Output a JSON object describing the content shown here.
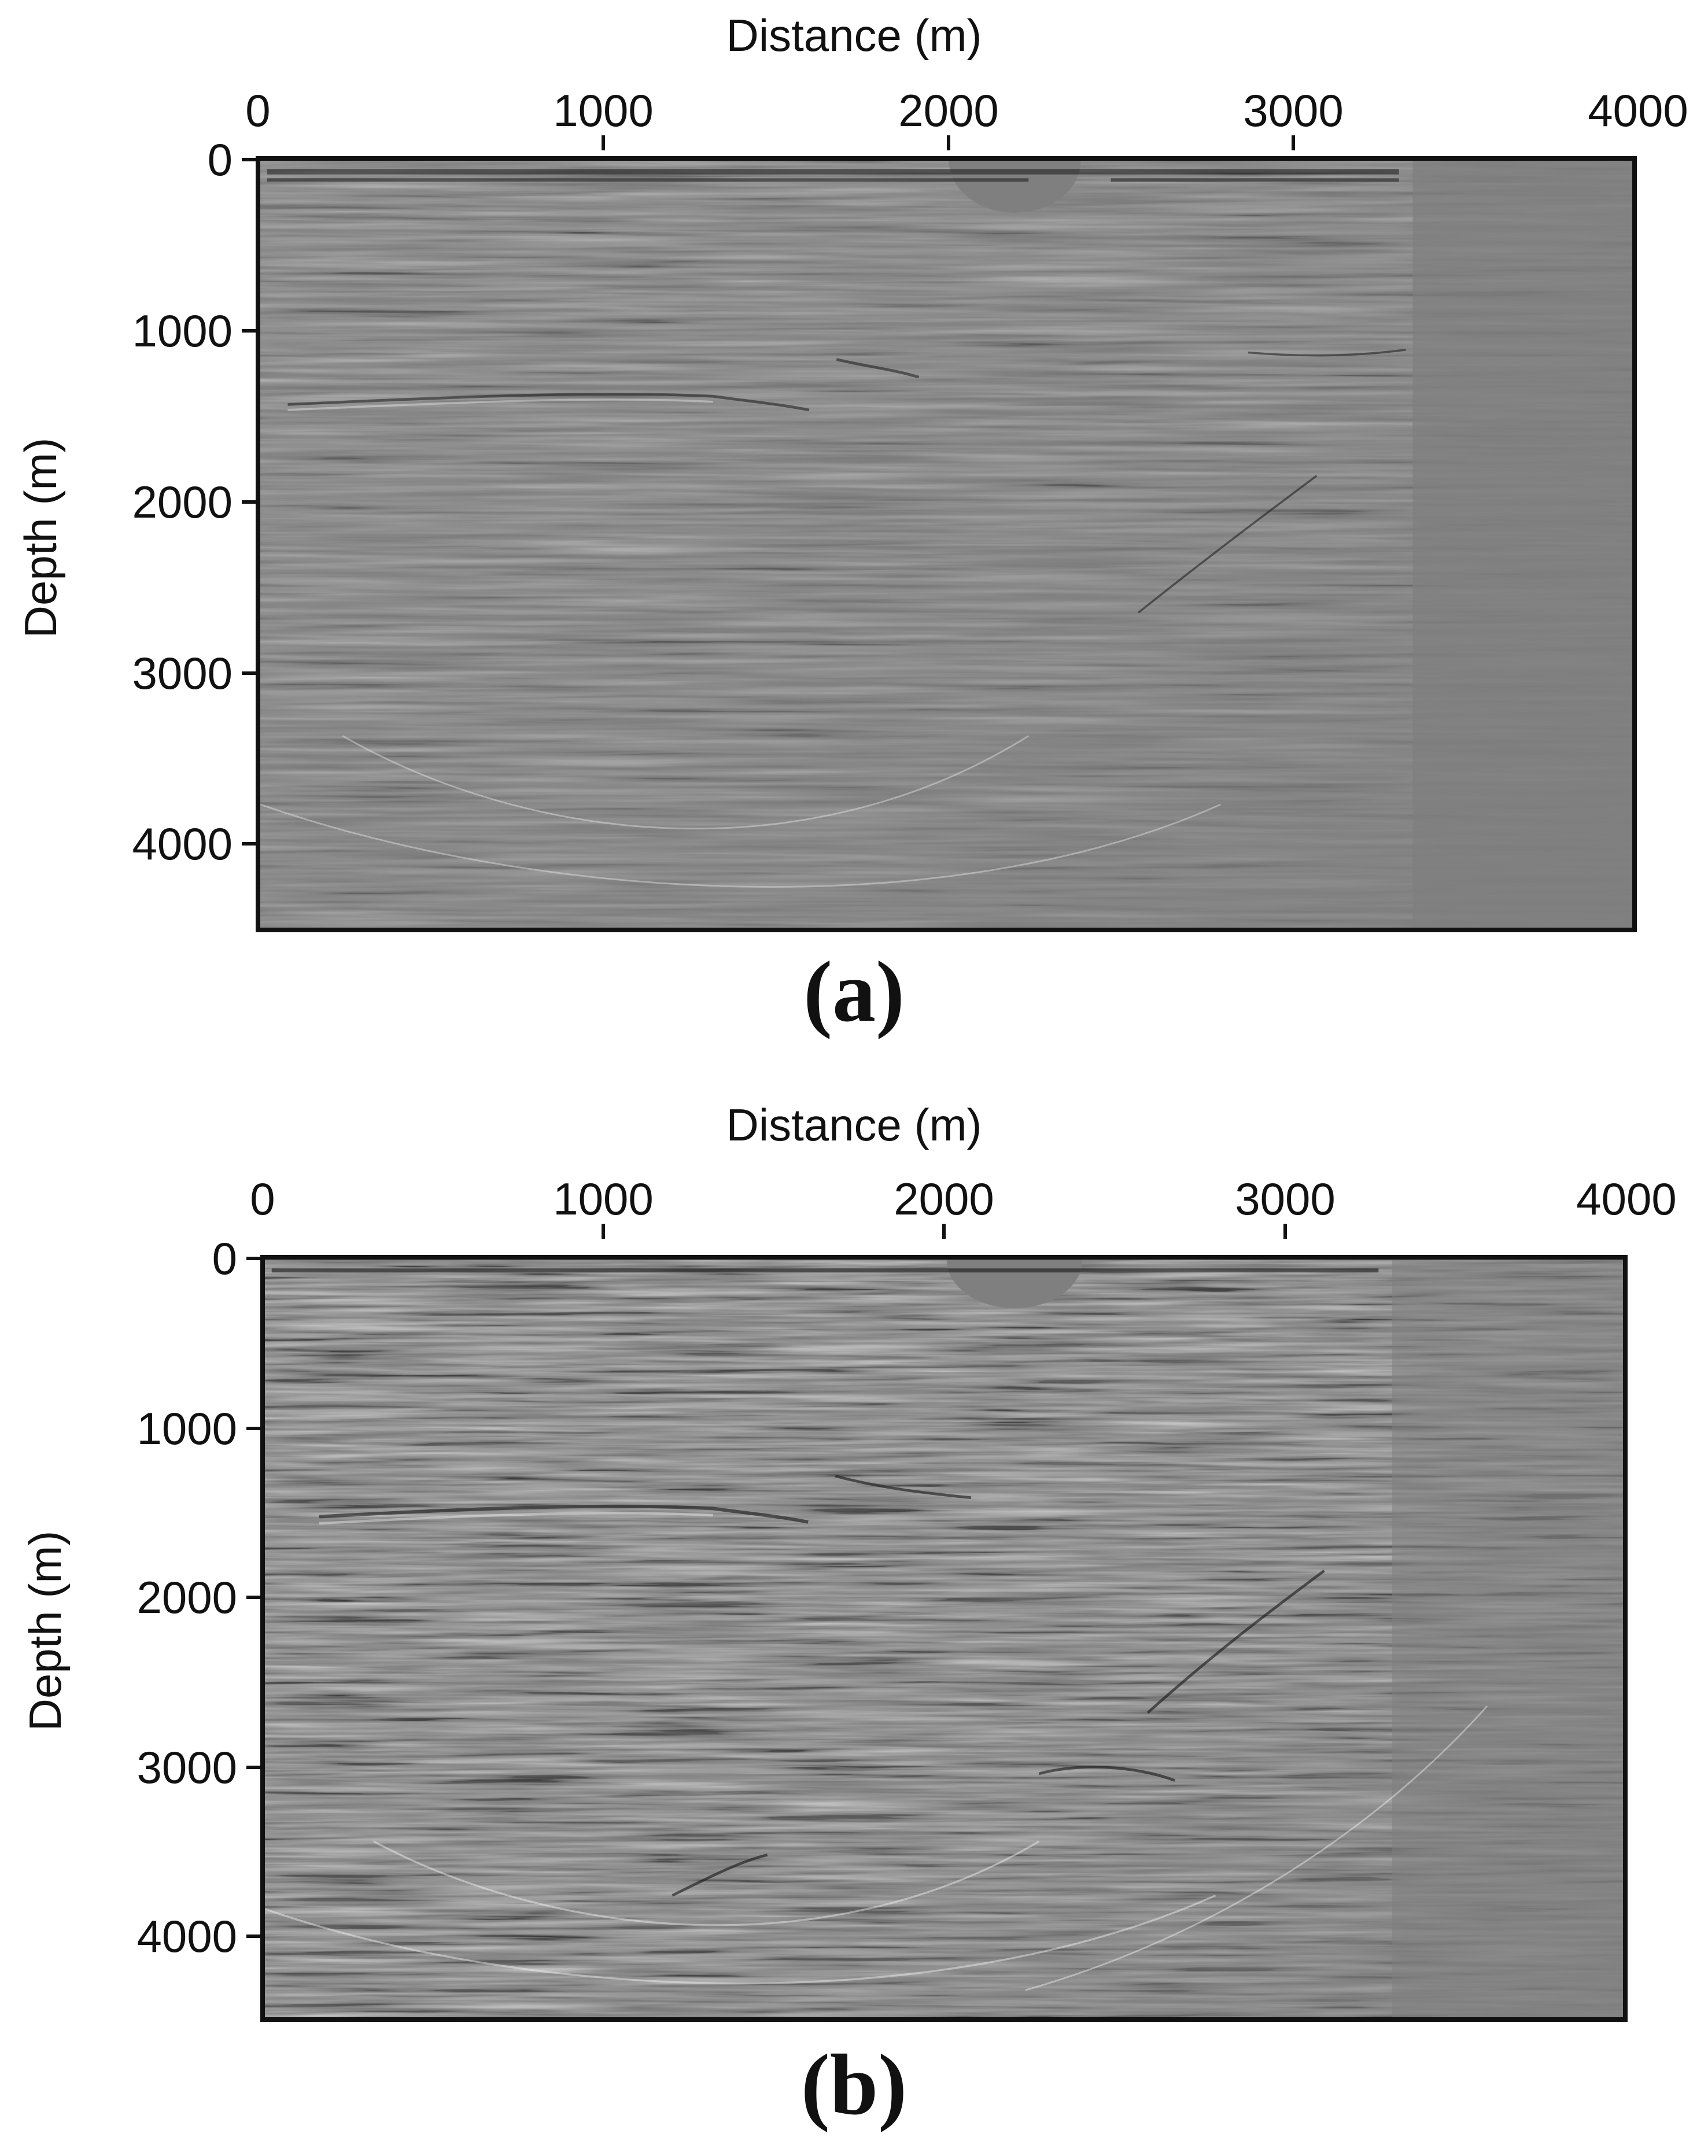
{
  "panels": [
    {
      "id": "a",
      "caption": "(a)",
      "xlabel": "Distance (m)",
      "ylabel": "Depth (m)",
      "xticks": [
        "0",
        "1000",
        "2000",
        "3000",
        "4000"
      ],
      "yticks": [
        "0",
        "1000",
        "2000",
        "3000",
        "4000"
      ],
      "x_range": [
        0,
        4000
      ],
      "depth_range": [
        0,
        4500
      ],
      "colors": {
        "background": "#7f7f7f",
        "frame": "#111111"
      }
    },
    {
      "id": "b",
      "caption": "(b)",
      "xlabel": "Distance (m)",
      "ylabel": "Depth (m)",
      "xticks": [
        "0",
        "1000",
        "2000",
        "3000",
        "4000"
      ],
      "yticks": [
        "0",
        "1000",
        "2000",
        "3000",
        "4000"
      ],
      "x_range": [
        0,
        4000
      ],
      "depth_range": [
        0,
        4500
      ],
      "colors": {
        "background": "#7f7f7f",
        "frame": "#111111"
      }
    }
  ]
}
